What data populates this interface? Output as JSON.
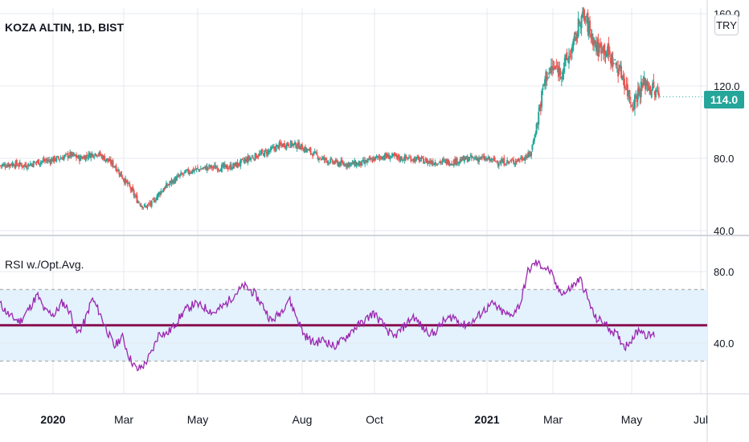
{
  "title": "KOZA ALTIN, 1D, BIST",
  "currency_label": "TRY",
  "last_price_label": "114.0",
  "colors": {
    "up": "#26a69a",
    "down": "#ef5350",
    "rsi_line": "#9c27b0",
    "midline": "#880e4f",
    "band_fill": "#e3f2fd",
    "badge": "#26a69a",
    "grid": "#e6e9ef",
    "axis_text": "#131722"
  },
  "chart_data": [
    {
      "type": "candlestick",
      "title": "KOZA ALTIN, 1D, BIST",
      "y_axis": {
        "ticks": [
          "40.0",
          "80.0",
          "120.0",
          "160.0"
        ],
        "ylim": [
          40,
          160
        ]
      },
      "x_axis": {
        "ticks": [
          "2020",
          "Mar",
          "May",
          "Aug",
          "Oct",
          "2021",
          "Mar",
          "May",
          "Jul"
        ]
      },
      "last_price": 114.0,
      "close_series": [
        [
          2019.88,
          76
        ],
        [
          2019.93,
          77
        ],
        [
          2019.98,
          76
        ],
        [
          2020.03,
          78
        ],
        [
          2020.08,
          79
        ],
        [
          2020.12,
          80
        ],
        [
          2020.16,
          82
        ],
        [
          2020.2,
          80
        ],
        [
          2020.24,
          82
        ],
        [
          2020.27,
          83
        ],
        [
          2020.31,
          79
        ],
        [
          2020.34,
          76
        ],
        [
          2020.37,
          70
        ],
        [
          2020.4,
          64
        ],
        [
          2020.43,
          57
        ],
        [
          2020.46,
          53
        ],
        [
          2020.49,
          55
        ],
        [
          2020.52,
          61
        ],
        [
          2020.56,
          66
        ],
        [
          2020.6,
          70
        ],
        [
          2020.64,
          73
        ],
        [
          2020.68,
          74
        ],
        [
          2020.72,
          75
        ],
        [
          2020.76,
          75
        ],
        [
          2020.8,
          75
        ],
        [
          2020.84,
          77
        ],
        [
          2020.88,
          80
        ],
        [
          2020.92,
          82
        ],
        [
          2020.96,
          84
        ],
        [
          2021.0,
          87
        ],
        [
          2021.04,
          88
        ],
        [
          2021.08,
          87
        ],
        [
          2021.12,
          84
        ],
        [
          2021.17,
          80
        ],
        [
          2021.21,
          78
        ],
        [
          2021.25,
          77
        ],
        [
          2021.29,
          77
        ],
        [
          2021.33,
          77
        ],
        [
          2021.37,
          79
        ],
        [
          2021.41,
          81
        ],
        [
          2021.45,
          81
        ],
        [
          2021.49,
          80
        ],
        [
          2021.53,
          80
        ],
        [
          2021.57,
          79
        ],
        [
          2021.61,
          78
        ],
        [
          2021.65,
          78
        ],
        [
          2021.69,
          78
        ],
        [
          2021.73,
          79
        ],
        [
          2021.77,
          80
        ],
        [
          2021.81,
          80
        ],
        [
          2021.85,
          79
        ],
        [
          2021.89,
          78
        ],
        [
          2021.93,
          78
        ],
        [
          2021.96,
          79
        ],
        [
          2021.99,
          81
        ],
        [
          2022.01,
          82
        ],
        [
          2022.03,
          95
        ],
        [
          2022.05,
          110
        ],
        [
          2022.07,
          125
        ],
        [
          2022.1,
          130
        ],
        [
          2022.13,
          128
        ],
        [
          2022.16,
          135
        ],
        [
          2022.19,
          145
        ],
        [
          2022.21,
          158
        ],
        [
          2022.23,
          157
        ],
        [
          2022.25,
          150
        ],
        [
          2022.28,
          140
        ],
        [
          2022.3,
          142
        ],
        [
          2022.33,
          136
        ],
        [
          2022.36,
          130
        ],
        [
          2022.38,
          126
        ],
        [
          2022.4,
          117
        ],
        [
          2022.42,
          110
        ],
        [
          2022.44,
          116
        ],
        [
          2022.47,
          122
        ],
        [
          2022.5,
          118
        ],
        [
          2022.53,
          114
        ]
      ]
    },
    {
      "type": "line",
      "title": "RSI w./Opt.Avg.",
      "y_axis": {
        "ticks": [
          "40.0",
          "80.0"
        ],
        "ylim": [
          20,
          90
        ]
      },
      "upper_band": 70,
      "lower_band": 30,
      "average_line": 50,
      "series": [
        {
          "values": [
            [
              2019.88,
              62
            ],
            [
              2019.92,
              55
            ],
            [
              2019.96,
              52
            ],
            [
              2020.0,
              60
            ],
            [
              2020.03,
              67
            ],
            [
              2020.06,
              58
            ],
            [
              2020.1,
              56
            ],
            [
              2020.13,
              63
            ],
            [
              2020.16,
              58
            ],
            [
              2020.19,
              45
            ],
            [
              2020.22,
              52
            ],
            [
              2020.25,
              65
            ],
            [
              2020.28,
              57
            ],
            [
              2020.31,
              47
            ],
            [
              2020.34,
              38
            ],
            [
              2020.37,
              44
            ],
            [
              2020.4,
              32
            ],
            [
              2020.43,
              25
            ],
            [
              2020.46,
              28
            ],
            [
              2020.49,
              35
            ],
            [
              2020.52,
              46
            ],
            [
              2020.55,
              45
            ],
            [
              2020.58,
              50
            ],
            [
              2020.62,
              58
            ],
            [
              2020.66,
              62
            ],
            [
              2020.7,
              60
            ],
            [
              2020.74,
              57
            ],
            [
              2020.78,
              61
            ],
            [
              2020.82,
              67
            ],
            [
              2020.86,
              72
            ],
            [
              2020.9,
              68
            ],
            [
              2020.94,
              60
            ],
            [
              2020.97,
              52
            ],
            [
              2021.01,
              58
            ],
            [
              2021.04,
              65
            ],
            [
              2021.07,
              55
            ],
            [
              2021.1,
              45
            ],
            [
              2021.14,
              40
            ],
            [
              2021.18,
              42
            ],
            [
              2021.22,
              38
            ],
            [
              2021.26,
              42
            ],
            [
              2021.3,
              48
            ],
            [
              2021.34,
              52
            ],
            [
              2021.38,
              57
            ],
            [
              2021.42,
              50
            ],
            [
              2021.46,
              43
            ],
            [
              2021.5,
              49
            ],
            [
              2021.54,
              55
            ],
            [
              2021.58,
              48
            ],
            [
              2021.62,
              45
            ],
            [
              2021.66,
              52
            ],
            [
              2021.7,
              55
            ],
            [
              2021.74,
              50
            ],
            [
              2021.78,
              52
            ],
            [
              2021.82,
              58
            ],
            [
              2021.86,
              62
            ],
            [
              2021.89,
              58
            ],
            [
              2021.93,
              55
            ],
            [
              2021.97,
              62
            ],
            [
              2022.0,
              80
            ],
            [
              2022.03,
              85
            ],
            [
              2022.06,
              83
            ],
            [
              2022.09,
              80
            ],
            [
              2022.12,
              70
            ],
            [
              2022.15,
              68
            ],
            [
              2022.18,
              72
            ],
            [
              2022.21,
              76
            ],
            [
              2022.24,
              65
            ],
            [
              2022.27,
              54
            ],
            [
              2022.3,
              52
            ],
            [
              2022.33,
              48
            ],
            [
              2022.36,
              44
            ],
            [
              2022.39,
              38
            ],
            [
              2022.42,
              43
            ],
            [
              2022.45,
              48
            ],
            [
              2022.48,
              44
            ],
            [
              2022.51,
              45
            ]
          ]
        }
      ]
    }
  ]
}
